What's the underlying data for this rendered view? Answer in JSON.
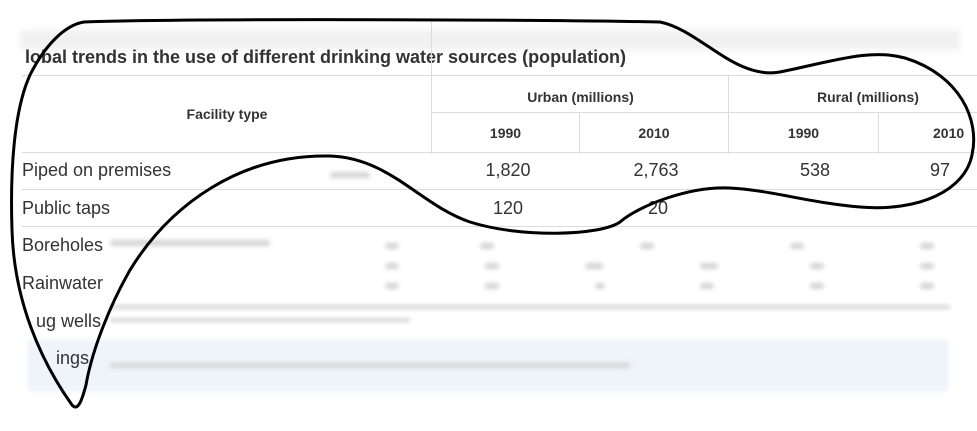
{
  "table": {
    "title": "lobal trends in the use of different drinking water sources (population)",
    "facility_header": "Facility type",
    "groups": [
      {
        "label": "Urban (millions)"
      },
      {
        "label": "Rural (millions)"
      }
    ],
    "years": [
      "1990",
      "2010",
      "1990",
      "2010"
    ],
    "rows": [
      {
        "label": "Piped on premises",
        "values": [
          "1,820",
          "2,763",
          "538",
          "97"
        ]
      },
      {
        "label": "Public taps",
        "values": [
          "120",
          "20",
          "",
          ""
        ]
      },
      {
        "label": "Boreholes",
        "values": [
          "",
          "",
          "",
          ""
        ]
      },
      {
        "label": "Rainwater",
        "values": [
          "",
          "",
          "",
          ""
        ]
      },
      {
        "label": "ug wells",
        "values": [
          "",
          "",
          "",
          ""
        ]
      },
      {
        "label": "ings",
        "values": [
          "",
          "",
          "",
          ""
        ]
      }
    ]
  },
  "colors": {
    "outline": "#000000",
    "grid": "#dcdcdc",
    "text": "#333333",
    "caption_bg": "#eef4fa"
  }
}
